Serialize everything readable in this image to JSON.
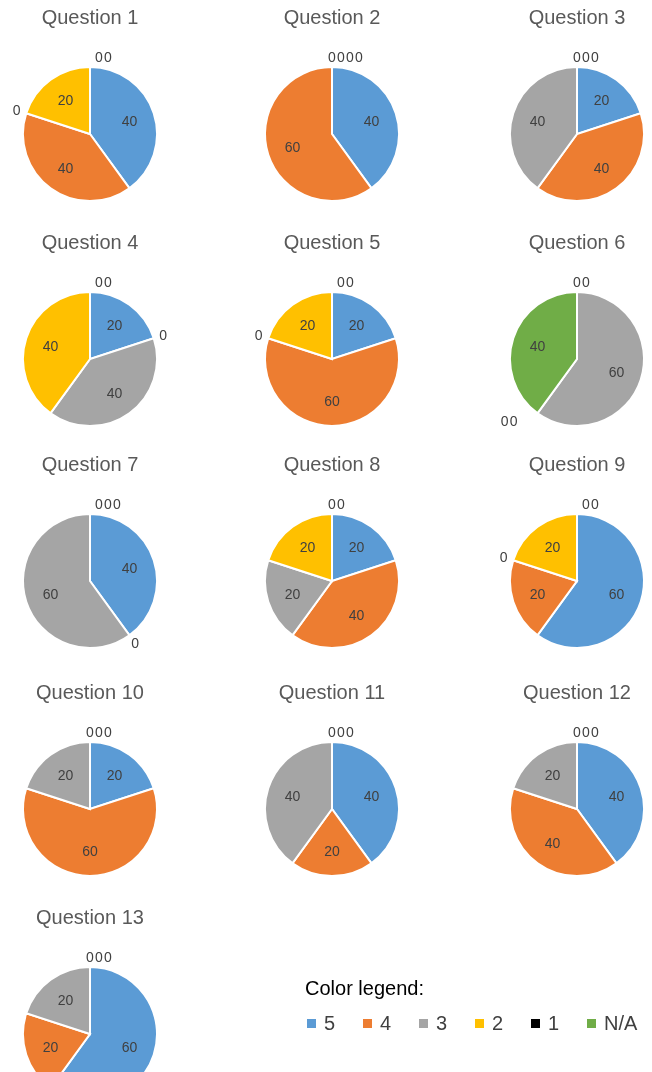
{
  "chart_data": [
    {
      "type": "pie",
      "title": "Question 1",
      "categories": [
        null,
        null,
        null,
        null,
        null,
        null
      ],
      "values": [
        40,
        40,
        0,
        20,
        0,
        0
      ],
      "value_labels": [
        "40",
        "40",
        "0",
        "20",
        "0",
        "0"
      ],
      "colors": [
        "#5b9bd5",
        "#ed7d31",
        "#a5a5a5",
        "#ffc000",
        "#000000",
        "#70ad47"
      ]
    },
    {
      "type": "pie",
      "title": "Question 2",
      "categories": [
        null,
        null,
        null,
        null,
        null,
        null
      ],
      "values": [
        40,
        60,
        0,
        0,
        0,
        0
      ],
      "value_labels": [
        "40",
        "60",
        "0",
        "0",
        "0",
        "0"
      ],
      "colors": [
        "#5b9bd5",
        "#ed7d31",
        "#a5a5a5",
        "#ffc000",
        "#000000",
        "#70ad47"
      ]
    },
    {
      "type": "pie",
      "title": "Question 3",
      "categories": [
        null,
        null,
        null,
        null,
        null,
        null
      ],
      "values": [
        20,
        40,
        40,
        0,
        0,
        0
      ],
      "value_labels": [
        "20",
        "40",
        "40",
        "0",
        "0",
        "0"
      ],
      "colors": [
        "#5b9bd5",
        "#ed7d31",
        "#a5a5a5",
        "#ffc000",
        "#000000",
        "#70ad47"
      ]
    },
    {
      "type": "pie",
      "title": "Question 4",
      "categories": [
        null,
        null,
        null,
        null,
        null,
        null
      ],
      "values": [
        20,
        0,
        40,
        40,
        0,
        0
      ],
      "value_labels": [
        "20",
        "0",
        "40",
        "40",
        "0",
        "0"
      ],
      "colors": [
        "#5b9bd5",
        "#ed7d31",
        "#a5a5a5",
        "#ffc000",
        "#000000",
        "#70ad47"
      ]
    },
    {
      "type": "pie",
      "title": "Question 5",
      "categories": [
        null,
        null,
        null,
        null,
        null,
        null
      ],
      "values": [
        20,
        60,
        0,
        20,
        0,
        0
      ],
      "value_labels": [
        "20",
        "60",
        "0",
        "20",
        "0",
        "0"
      ],
      "colors": [
        "#5b9bd5",
        "#ed7d31",
        "#a5a5a5",
        "#ffc000",
        "#000000",
        "#70ad47"
      ]
    },
    {
      "type": "pie",
      "title": "Question 6",
      "categories": [
        null,
        null,
        null,
        null,
        null,
        null
      ],
      "values": [
        0,
        0,
        60,
        0,
        0,
        40
      ],
      "value_labels": [
        "0",
        "0",
        "60",
        "0",
        "0",
        "40"
      ],
      "colors": [
        "#5b9bd5",
        "#ed7d31",
        "#a5a5a5",
        "#ffc000",
        "#000000",
        "#70ad47"
      ]
    },
    {
      "type": "pie",
      "title": "Question 7",
      "categories": [
        null,
        null,
        null,
        null,
        null,
        null
      ],
      "values": [
        40,
        0,
        60,
        0,
        0,
        0
      ],
      "value_labels": [
        "40",
        "0",
        "60",
        "0",
        "0",
        "0"
      ],
      "colors": [
        "#5b9bd5",
        "#ed7d31",
        "#a5a5a5",
        "#ffc000",
        "#000000",
        "#70ad47"
      ]
    },
    {
      "type": "pie",
      "title": "Question 8",
      "categories": [
        null,
        null,
        null,
        null,
        null,
        null
      ],
      "values": [
        20,
        40,
        20,
        20,
        0,
        0
      ],
      "value_labels": [
        "20",
        "40",
        "20",
        "20",
        "0",
        "0"
      ],
      "colors": [
        "#5b9bd5",
        "#ed7d31",
        "#a5a5a5",
        "#ffc000",
        "#000000",
        "#70ad47"
      ]
    },
    {
      "type": "pie",
      "title": "Question 9",
      "categories": [
        null,
        null,
        null,
        null,
        null,
        null
      ],
      "values": [
        60,
        20,
        0,
        20,
        0,
        0
      ],
      "value_labels": [
        "60",
        "20",
        "0",
        "20",
        "0",
        "0"
      ],
      "colors": [
        "#5b9bd5",
        "#ed7d31",
        "#a5a5a5",
        "#ffc000",
        "#000000",
        "#70ad47"
      ]
    },
    {
      "type": "pie",
      "title": "Question 10",
      "categories": [
        null,
        null,
        null,
        null,
        null,
        null
      ],
      "values": [
        20,
        60,
        20,
        0,
        0,
        0
      ],
      "value_labels": [
        "20",
        "60",
        "20",
        "0",
        "0",
        "0"
      ],
      "colors": [
        "#5b9bd5",
        "#ed7d31",
        "#a5a5a5",
        "#ffc000",
        "#000000",
        "#70ad47"
      ]
    },
    {
      "type": "pie",
      "title": "Question 11",
      "categories": [
        null,
        null,
        null,
        null,
        null,
        null
      ],
      "values": [
        40,
        20,
        40,
        0,
        0,
        0
      ],
      "value_labels": [
        "40",
        "20",
        "40",
        "0",
        "0",
        "0"
      ],
      "colors": [
        "#5b9bd5",
        "#ed7d31",
        "#a5a5a5",
        "#ffc000",
        "#000000",
        "#70ad47"
      ]
    },
    {
      "type": "pie",
      "title": "Question 12",
      "categories": [
        null,
        null,
        null,
        null,
        null,
        null
      ],
      "values": [
        40,
        40,
        20,
        0,
        0,
        0
      ],
      "value_labels": [
        "40",
        "40",
        "20",
        "0",
        "0",
        "0"
      ],
      "colors": [
        "#5b9bd5",
        "#ed7d31",
        "#a5a5a5",
        "#ffc000",
        "#000000",
        "#70ad47"
      ]
    },
    {
      "type": "pie",
      "title": "Question 13",
      "categories": [
        "5",
        "4",
        "3",
        "2",
        "1",
        "N/A"
      ],
      "values": [
        60,
        20,
        20,
        0,
        0,
        0
      ],
      "value_labels": [
        "60",
        "20",
        "20",
        "0",
        "0",
        "0"
      ],
      "colors": [
        "#5b9bd5",
        "#ed7d31",
        "#a5a5a5",
        "#ffc000",
        "#000000",
        "#70ad47"
      ],
      "legend": "right",
      "legend_title": "Color legend:"
    }
  ]
}
